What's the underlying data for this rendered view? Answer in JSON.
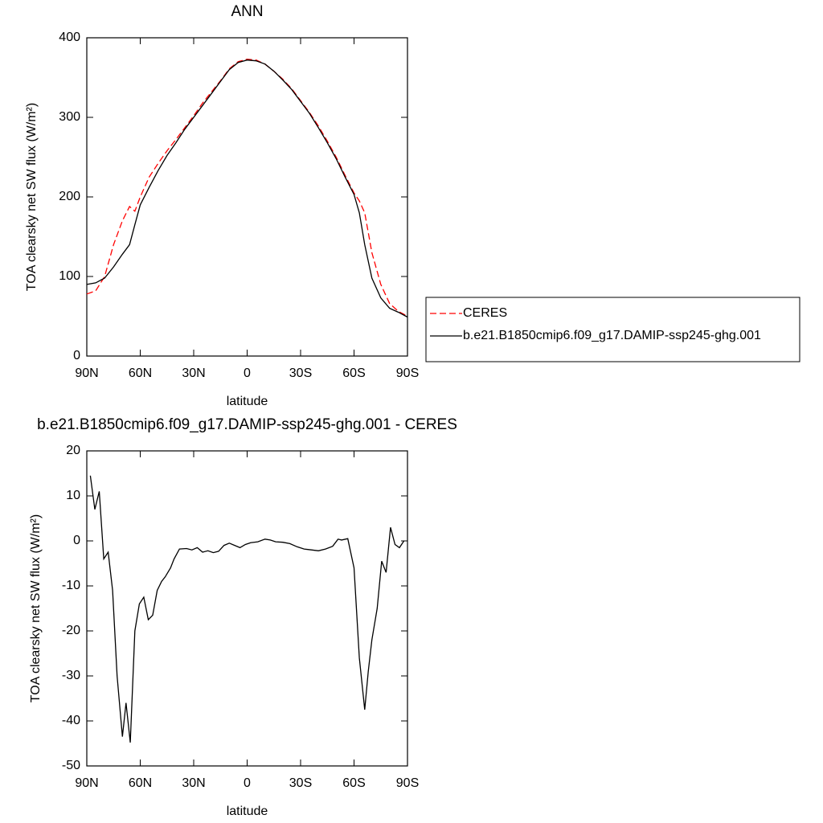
{
  "chart_data": [
    {
      "type": "line",
      "title": "ANN",
      "x_label": "latitude",
      "y_label": "TOA clearsky net SW flux (W/m²)",
      "x": [
        90,
        85,
        80,
        75,
        70,
        66,
        63,
        60,
        55,
        50,
        45,
        40,
        35,
        30,
        25,
        20,
        15,
        10,
        5,
        0,
        -5,
        -10,
        -15,
        -20,
        -25,
        -30,
        -35,
        -40,
        -45,
        -50,
        -55,
        -60,
        -63,
        -66,
        -70,
        -75,
        -80,
        -85,
        -90
      ],
      "series": [
        {
          "name": "CERES",
          "color": "#ff0000",
          "linestyle": "dashed",
          "values": [
            78,
            82,
            100,
            140,
            170,
            188,
            182,
            200,
            225,
            242,
            258,
            272,
            287,
            302,
            318,
            332,
            346,
            361,
            370,
            373,
            372,
            367,
            358,
            348,
            336,
            321,
            306,
            289,
            270,
            250,
            227,
            205,
            195,
            180,
            130,
            90,
            66,
            56,
            50
          ]
        },
        {
          "name": "b.e21.B1850cmip6.f09_g17.DAMIP-ssp245-ghg.001",
          "color": "#000000",
          "linestyle": "solid",
          "values": [
            90,
            92,
            98,
            112,
            128,
            140,
            165,
            190,
            212,
            233,
            252,
            268,
            285,
            300,
            315,
            330,
            345,
            360,
            369,
            372,
            371,
            367,
            358,
            347,
            335,
            320,
            305,
            287,
            268,
            248,
            225,
            203,
            180,
            140,
            98,
            73,
            60,
            55,
            49
          ]
        }
      ],
      "xlim": [
        90,
        -90
      ],
      "xticks": [
        {
          "value": 90,
          "label": "90N"
        },
        {
          "value": 60,
          "label": "60N"
        },
        {
          "value": 30,
          "label": "30N"
        },
        0,
        {
          "value": -30,
          "label": "30S"
        },
        {
          "value": -60,
          "label": "60S"
        },
        {
          "value": -90,
          "label": "90S"
        }
      ],
      "ylim": [
        0,
        400
      ],
      "yticks": [
        0,
        100,
        200,
        300,
        400
      ],
      "legend_position": "right"
    },
    {
      "type": "line",
      "title": "b.e21.B1850cmip6.f09_g17.DAMIP-ssp245-ghg.001 - CERES",
      "x_label": "latitude",
      "y_label": "TOA clearsky net SW flux (W/m²)",
      "x": [
        88,
        85.5,
        83,
        80.5,
        78,
        75.5,
        73,
        70,
        68,
        65.6,
        63,
        60.5,
        58,
        55.5,
        53,
        50.5,
        48,
        46,
        43,
        41,
        38,
        34,
        31,
        28,
        25,
        22,
        19,
        16,
        13,
        10,
        7,
        4,
        1,
        -2,
        -6,
        -10,
        -13,
        -16,
        -20,
        -24,
        -28,
        -32,
        -36,
        -40,
        -44,
        -48,
        -51,
        -53,
        -56.5,
        -60,
        -63,
        -66,
        -68,
        -70,
        -73,
        -75.5,
        -78,
        -80.5,
        -83,
        -85.5,
        -88
      ],
      "values": [
        14.5,
        7,
        11,
        -4,
        -2.5,
        -11,
        -30,
        -43.5,
        -36,
        -44.8,
        -20,
        -14,
        -12.5,
        -17.5,
        -16.5,
        -11,
        -9,
        -8,
        -6,
        -4,
        -1.8,
        -1.7,
        -2,
        -1.5,
        -2.5,
        -2.2,
        -2.6,
        -2.3,
        -1,
        -0.5,
        -1,
        -1.5,
        -0.8,
        -0.4,
        -0.2,
        0.4,
        0.2,
        -0.2,
        -0.3,
        -0.6,
        -1.3,
        -1.8,
        -2,
        -2.2,
        -1.8,
        -1.2,
        0.4,
        0.2,
        0.5,
        -6,
        -26,
        -37.5,
        -29,
        -22,
        -15,
        -4.5,
        -7,
        3,
        -0.8,
        -1.5,
        0
      ],
      "color": "#000000",
      "xlim": [
        90,
        -90
      ],
      "xticks": [
        {
          "value": 90,
          "label": "90N"
        },
        {
          "value": 60,
          "label": "60N"
        },
        {
          "value": 30,
          "label": "30N"
        },
        0,
        {
          "value": -30,
          "label": "30S"
        },
        {
          "value": -60,
          "label": "60S"
        },
        {
          "value": -90,
          "label": "90S"
        }
      ],
      "ylim": [
        -50,
        20
      ],
      "yticks": [
        -50,
        -40,
        -30,
        -20,
        -10,
        0,
        10,
        20
      ]
    }
  ]
}
